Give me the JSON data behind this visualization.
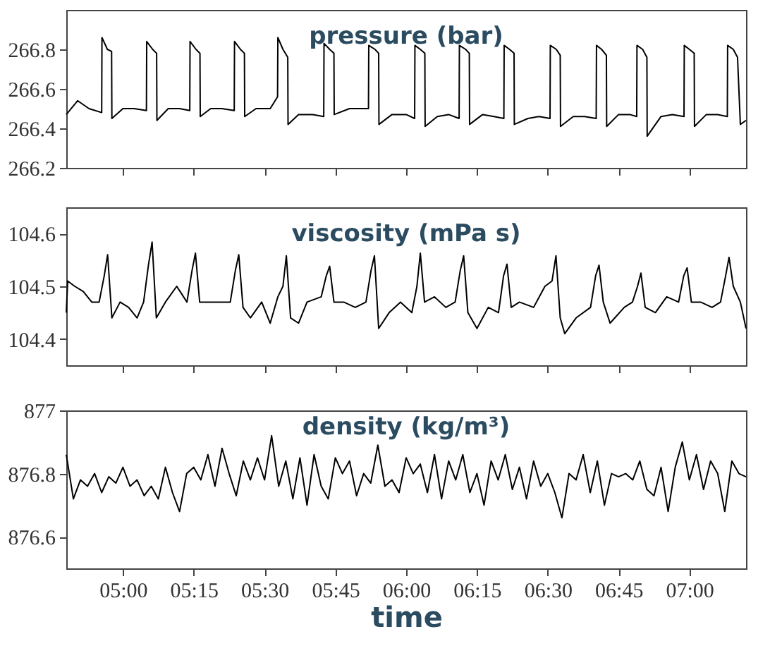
{
  "chart_data": [
    {
      "type": "line",
      "title": "pressure (bar)",
      "tick_labels": "y",
      "xlim": [
        4.8,
        7.2
      ],
      "ylim": [
        266.2,
        267.0
      ],
      "yticks": [
        266.2,
        266.4,
        266.6,
        266.8
      ],
      "xticks": [
        {
          "value": 5,
          "label": null
        },
        {
          "value": 5.25,
          "label": null
        },
        {
          "value": 5.5,
          "label": null
        },
        {
          "value": 5.75,
          "label": null
        },
        {
          "value": 6,
          "label": null
        },
        {
          "value": 6.25,
          "label": null
        },
        {
          "value": 6.5,
          "label": null
        },
        {
          "value": 6.75,
          "label": null
        },
        {
          "value": 7,
          "label": null
        }
      ],
      "x": [
        4.8,
        4.84,
        4.88,
        4.925,
        4.926,
        4.945,
        4.96,
        4.961,
        5.0,
        5.04,
        5.083,
        5.084,
        5.105,
        5.119,
        5.12,
        5.16,
        5.2,
        5.236,
        5.237,
        5.258,
        5.272,
        5.273,
        5.31,
        5.35,
        5.393,
        5.394,
        5.415,
        5.429,
        5.43,
        5.47,
        5.52,
        5.546,
        5.547,
        5.565,
        5.582,
        5.583,
        5.62,
        5.67,
        5.709,
        5.71,
        5.73,
        5.745,
        5.746,
        5.8,
        5.867,
        5.868,
        5.89,
        5.903,
        5.904,
        5.95,
        6.0,
        6.03,
        6.031,
        6.05,
        6.066,
        6.067,
        6.11,
        6.15,
        6.187,
        6.188,
        6.21,
        6.223,
        6.224,
        6.27,
        6.31,
        6.345,
        6.346,
        6.365,
        6.381,
        6.382,
        6.43,
        6.47,
        6.508,
        6.509,
        6.53,
        6.544,
        6.545,
        6.59,
        6.63,
        6.671,
        6.672,
        6.69,
        6.707,
        6.708,
        6.75,
        6.79,
        6.814,
        6.815,
        6.835,
        6.85,
        6.851,
        6.9,
        6.94,
        6.981,
        6.982,
        7.0,
        7.017,
        7.018,
        7.06,
        7.1,
        7.134,
        7.135,
        7.155,
        7.17,
        7.18,
        7.2
      ],
      "series": [
        {
          "color": "#000000",
          "values": [
            266.47,
            266.54,
            266.5,
            266.48,
            266.86,
            266.8,
            266.79,
            266.45,
            266.5,
            266.5,
            266.49,
            266.84,
            266.8,
            266.78,
            266.44,
            266.5,
            266.5,
            266.49,
            266.84,
            266.8,
            266.78,
            266.46,
            266.5,
            266.5,
            266.49,
            266.84,
            266.8,
            266.78,
            266.46,
            266.5,
            266.5,
            266.56,
            266.86,
            266.8,
            266.76,
            266.42,
            266.47,
            266.47,
            266.46,
            266.83,
            266.8,
            266.78,
            266.47,
            266.5,
            266.5,
            266.82,
            266.8,
            266.78,
            266.42,
            266.47,
            266.47,
            266.45,
            266.82,
            266.8,
            266.78,
            266.41,
            266.46,
            266.47,
            266.45,
            266.82,
            266.8,
            266.78,
            266.42,
            266.47,
            266.46,
            266.45,
            266.82,
            266.8,
            266.78,
            266.42,
            266.45,
            266.46,
            266.45,
            266.82,
            266.8,
            266.77,
            266.41,
            266.46,
            266.46,
            266.45,
            266.82,
            266.8,
            266.77,
            266.41,
            266.47,
            266.47,
            266.46,
            266.82,
            266.8,
            266.76,
            266.36,
            266.46,
            266.47,
            266.46,
            266.82,
            266.8,
            266.78,
            266.41,
            266.47,
            266.47,
            266.46,
            266.82,
            266.8,
            266.76,
            266.42,
            266.44
          ]
        }
      ]
    },
    {
      "type": "line",
      "title": "viscosity (mPa s)",
      "tick_labels": "y",
      "xlim": [
        4.8,
        7.2
      ],
      "ylim": [
        104.35,
        104.65
      ],
      "yticks": [
        104.4,
        104.5,
        104.6
      ],
      "xticks": [
        {
          "value": 5,
          "label": null
        },
        {
          "value": 5.25,
          "label": null
        },
        {
          "value": 5.5,
          "label": null
        },
        {
          "value": 5.75,
          "label": null
        },
        {
          "value": 6,
          "label": null
        },
        {
          "value": 6.25,
          "label": null
        },
        {
          "value": 6.5,
          "label": null
        },
        {
          "value": 6.75,
          "label": null
        },
        {
          "value": 7,
          "label": null
        }
      ],
      "x": [
        4.8,
        4.805,
        4.83,
        4.86,
        4.89,
        4.916,
        4.934,
        4.946,
        4.961,
        4.99,
        5.02,
        5.05,
        5.073,
        5.09,
        5.103,
        5.118,
        5.15,
        5.19,
        5.226,
        5.244,
        5.256,
        5.271,
        5.3,
        5.35,
        5.379,
        5.397,
        5.409,
        5.424,
        5.45,
        5.49,
        5.52,
        5.547,
        5.565,
        5.577,
        5.592,
        5.62,
        5.65,
        5.7,
        5.718,
        5.73,
        5.745,
        5.78,
        5.82,
        5.858,
        5.876,
        5.888,
        5.903,
        5.94,
        5.98,
        6.02,
        6.038,
        6.05,
        6.065,
        6.1,
        6.14,
        6.173,
        6.191,
        6.203,
        6.218,
        6.25,
        6.29,
        6.326,
        6.344,
        6.356,
        6.371,
        6.4,
        6.45,
        6.49,
        6.515,
        6.529,
        6.544,
        6.56,
        6.6,
        6.651,
        6.669,
        6.681,
        6.696,
        6.72,
        6.77,
        6.799,
        6.817,
        6.829,
        6.844,
        6.88,
        6.92,
        6.962,
        6.98,
        6.992,
        7.007,
        7.04,
        7.08,
        7.11,
        7.128,
        7.14,
        7.155,
        7.18,
        7.2
      ],
      "series": [
        {
          "color": "#000000",
          "values": [
            104.45,
            104.51,
            104.5,
            104.49,
            104.47,
            104.47,
            104.52,
            104.56,
            104.44,
            104.47,
            104.46,
            104.44,
            104.47,
            104.54,
            104.584,
            104.44,
            104.47,
            104.5,
            104.47,
            104.53,
            104.563,
            104.47,
            104.47,
            104.47,
            104.47,
            104.53,
            104.56,
            104.46,
            104.44,
            104.47,
            104.43,
            104.48,
            104.5,
            104.558,
            104.44,
            104.43,
            104.47,
            104.48,
            104.52,
            104.538,
            104.47,
            104.47,
            104.46,
            104.47,
            104.53,
            104.558,
            104.42,
            104.45,
            104.47,
            104.45,
            104.5,
            104.563,
            104.47,
            104.48,
            104.46,
            104.47,
            104.53,
            104.558,
            104.45,
            104.42,
            104.46,
            104.45,
            104.52,
            104.542,
            104.46,
            104.47,
            104.46,
            104.5,
            104.51,
            104.558,
            104.44,
            104.41,
            104.44,
            104.46,
            104.52,
            104.54,
            104.47,
            104.43,
            104.46,
            104.47,
            104.5,
            104.525,
            104.46,
            104.45,
            104.48,
            104.47,
            104.52,
            104.535,
            104.47,
            104.47,
            104.46,
            104.47,
            104.52,
            104.555,
            104.5,
            104.47,
            104.42
          ]
        }
      ]
    },
    {
      "type": "line",
      "title": "density (kg/m³)",
      "xlabel": "time",
      "xlim": [
        4.8,
        7.2
      ],
      "ylim": [
        876.5,
        877
      ],
      "yticks": [
        876.6,
        876.8,
        877
      ],
      "xticks": [
        {
          "value": 5,
          "label": "05:00"
        },
        {
          "value": 5.25,
          "label": "05:15"
        },
        {
          "value": 5.5,
          "label": "05:30"
        },
        {
          "value": 5.75,
          "label": "05:45"
        },
        {
          "value": 6,
          "label": "06:00"
        },
        {
          "value": 6.25,
          "label": "06:15"
        },
        {
          "value": 6.5,
          "label": "06:30"
        },
        {
          "value": 6.75,
          "label": "06:45"
        },
        {
          "value": 7,
          "label": "07:00"
        }
      ],
      "x": [
        4.8,
        4.825,
        4.85,
        4.875,
        4.9,
        4.925,
        4.95,
        4.975,
        5.0,
        5.025,
        5.05,
        5.075,
        5.1,
        5.125,
        5.15,
        5.175,
        5.2,
        5.225,
        5.25,
        5.275,
        5.3,
        5.325,
        5.35,
        5.375,
        5.4,
        5.425,
        5.45,
        5.475,
        5.5,
        5.525,
        5.55,
        5.575,
        5.6,
        5.625,
        5.65,
        5.675,
        5.7,
        5.725,
        5.75,
        5.775,
        5.8,
        5.825,
        5.85,
        5.875,
        5.9,
        5.925,
        5.95,
        5.975,
        6.0,
        6.025,
        6.05,
        6.075,
        6.1,
        6.125,
        6.15,
        6.175,
        6.2,
        6.225,
        6.25,
        6.275,
        6.3,
        6.325,
        6.35,
        6.375,
        6.4,
        6.425,
        6.45,
        6.475,
        6.5,
        6.525,
        6.55,
        6.575,
        6.6,
        6.625,
        6.65,
        6.675,
        6.7,
        6.725,
        6.75,
        6.775,
        6.8,
        6.825,
        6.85,
        6.875,
        6.9,
        6.925,
        6.95,
        6.975,
        7.0,
        7.025,
        7.05,
        7.075,
        7.1,
        7.125,
        7.15,
        7.175,
        7.2
      ],
      "series": [
        {
          "color": "#000000",
          "values": [
            876.86,
            876.72,
            876.78,
            876.76,
            876.8,
            876.74,
            876.79,
            876.77,
            876.82,
            876.76,
            876.78,
            876.73,
            876.76,
            876.72,
            876.82,
            876.74,
            876.68,
            876.8,
            876.82,
            876.78,
            876.86,
            876.76,
            876.88,
            876.8,
            876.73,
            876.84,
            876.78,
            876.85,
            876.78,
            876.92,
            876.76,
            876.84,
            876.72,
            876.85,
            876.7,
            876.86,
            876.76,
            876.72,
            876.85,
            876.8,
            876.84,
            876.73,
            876.8,
            876.77,
            876.89,
            876.76,
            876.78,
            876.74,
            876.85,
            876.8,
            876.83,
            876.74,
            876.86,
            876.72,
            876.84,
            876.78,
            876.86,
            876.74,
            876.8,
            876.7,
            876.84,
            876.78,
            876.86,
            876.75,
            876.82,
            876.72,
            876.84,
            876.76,
            876.8,
            876.74,
            876.66,
            876.8,
            876.78,
            876.86,
            876.74,
            876.84,
            876.7,
            876.8,
            876.79,
            876.8,
            876.78,
            876.84,
            876.75,
            876.73,
            876.82,
            876.68,
            876.82,
            876.9,
            876.78,
            876.86,
            876.75,
            876.84,
            876.8,
            876.68,
            876.84,
            876.8,
            876.79
          ]
        }
      ]
    }
  ]
}
